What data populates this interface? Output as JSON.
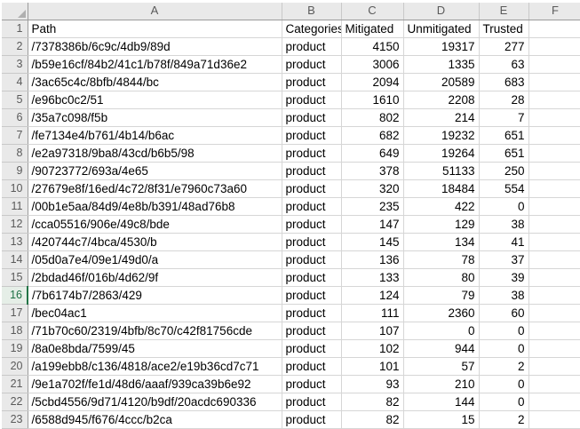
{
  "sheet": {
    "column_letters": [
      "A",
      "B",
      "C",
      "D",
      "E",
      "F"
    ],
    "active_row_number": "16",
    "icons": {
      "corner": "select-all-triangle"
    },
    "colors": {
      "active_row_accent": "#217346",
      "active_row_text": "#1e7145",
      "active_row_bg": "#e5eee7",
      "header_bg": "#e9e9e9",
      "gridline": "#d6d6d6"
    },
    "rows": [
      {
        "number": "1",
        "cells": [
          "Path",
          "Categories",
          "Mitigated",
          "Unmitigated",
          "Trusted",
          ""
        ]
      },
      {
        "number": "2",
        "cells": [
          "/7378386b/6c9c/4db9/89d",
          "product",
          "4150",
          "19317",
          "277",
          ""
        ]
      },
      {
        "number": "3",
        "cells": [
          "/b59e16cf/84b2/41c1/b78f/849a71d36e2",
          "product",
          "3006",
          "1335",
          "63",
          ""
        ]
      },
      {
        "number": "4",
        "cells": [
          "/3ac65c4c/8bfb/4844/bc",
          "product",
          "2094",
          "20589",
          "683",
          ""
        ]
      },
      {
        "number": "5",
        "cells": [
          "/e96bc0c2/51",
          "product",
          "1610",
          "2208",
          "28",
          ""
        ]
      },
      {
        "number": "6",
        "cells": [
          "/35a7c098/f5b",
          "product",
          "802",
          "214",
          "7",
          ""
        ]
      },
      {
        "number": "7",
        "cells": [
          "/fe7134e4/b761/4b14/b6ac",
          "product",
          "682",
          "19232",
          "651",
          ""
        ]
      },
      {
        "number": "8",
        "cells": [
          "/e2a97318/9ba8/43cd/b6b5/98",
          "product",
          "649",
          "19264",
          "651",
          ""
        ]
      },
      {
        "number": "9",
        "cells": [
          "/90723772/693a/4e65",
          "product",
          "378",
          "51133",
          "250",
          ""
        ]
      },
      {
        "number": "10",
        "cells": [
          "/27679e8f/16ed/4c72/8f31/e7960c73a60",
          "product",
          "320",
          "18484",
          "554",
          ""
        ]
      },
      {
        "number": "11",
        "cells": [
          "/00b1e5aa/84d9/4e8b/b391/48ad76b8",
          "product",
          "235",
          "422",
          "0",
          ""
        ]
      },
      {
        "number": "12",
        "cells": [
          "/cca05516/906e/49c8/bde",
          "product",
          "147",
          "129",
          "38",
          ""
        ]
      },
      {
        "number": "13",
        "cells": [
          "/420744c7/4bca/4530/b",
          "product",
          "145",
          "134",
          "41",
          ""
        ]
      },
      {
        "number": "14",
        "cells": [
          "/05d0a7e4/09e1/49d0/a",
          "product",
          "136",
          "78",
          "37",
          ""
        ]
      },
      {
        "number": "15",
        "cells": [
          "/2bdad46f/016b/4d62/9f",
          "product",
          "133",
          "80",
          "39",
          ""
        ]
      },
      {
        "number": "16",
        "cells": [
          "/7b6174b7/2863/429",
          "product",
          "124",
          "79",
          "38",
          ""
        ]
      },
      {
        "number": "17",
        "cells": [
          "/bec04ac1",
          "product",
          "111",
          "2360",
          "60",
          ""
        ]
      },
      {
        "number": "18",
        "cells": [
          "/71b70c60/2319/4bfb/8c70/c42f81756cde",
          "product",
          "107",
          "0",
          "0",
          ""
        ]
      },
      {
        "number": "19",
        "cells": [
          "/8a0e8bda/7599/45",
          "product",
          "102",
          "944",
          "0",
          ""
        ]
      },
      {
        "number": "20",
        "cells": [
          "/a199ebb8/c136/4818/ace2/e19b36cd7c71",
          "product",
          "101",
          "57",
          "2",
          ""
        ]
      },
      {
        "number": "21",
        "cells": [
          "/9e1a702f/fe1d/48d6/aaaf/939ca39b6e92",
          "product",
          "93",
          "210",
          "0",
          ""
        ]
      },
      {
        "number": "22",
        "cells": [
          "/5cbd4556/9d71/4120/b9df/20acdc690336",
          "product",
          "82",
          "144",
          "0",
          ""
        ]
      },
      {
        "number": "23",
        "cells": [
          "/6588d945/f676/4ccc/b2ca",
          "product",
          "82",
          "15",
          "2",
          ""
        ]
      }
    ]
  }
}
